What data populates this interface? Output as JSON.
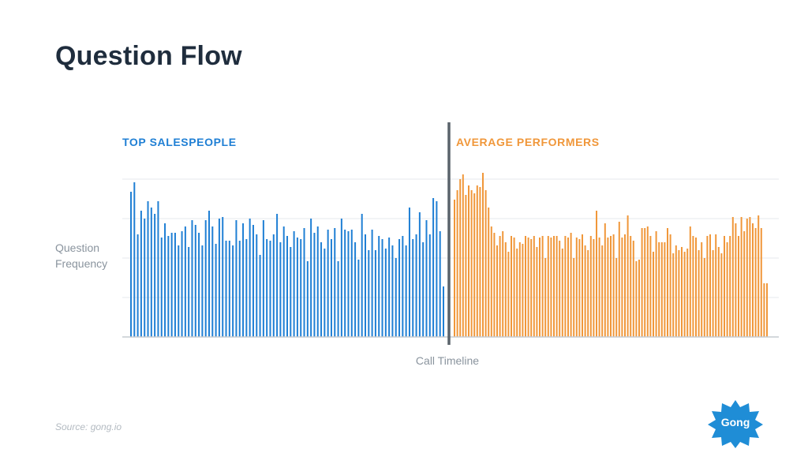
{
  "title": "Question Flow",
  "source": "Source: gong.io",
  "logo": {
    "text": "Gong",
    "color": "#1f8dd6"
  },
  "colors": {
    "top": "#1f7fd4",
    "average": "#f0973a",
    "divider": "#5a636b",
    "grid": "#e6e9ec",
    "axis": "#c5cbd1"
  },
  "chart_data": {
    "type": "bar",
    "title": "Question Flow",
    "xlabel": "Call Timeline",
    "ylabel_lines": [
      "Question",
      "Frequency"
    ],
    "ylim": [
      0,
      100
    ],
    "grid": true,
    "series": [
      {
        "name": "TOP SALESPEOPLE",
        "color": "#1f7fd4",
        "values": [
          92,
          98,
          65,
          80,
          75,
          86,
          82,
          78,
          86,
          63,
          72,
          64,
          66,
          66,
          58,
          67,
          70,
          57,
          74,
          71,
          66,
          58,
          74,
          80,
          70,
          59,
          75,
          76,
          61,
          61,
          58,
          74,
          61,
          72,
          62,
          75,
          71,
          65,
          52,
          74,
          62,
          61,
          65,
          78,
          60,
          70,
          64,
          57,
          67,
          63,
          62,
          69,
          48,
          75,
          66,
          70,
          60,
          56,
          68,
          62,
          69,
          48,
          75,
          68,
          67,
          68,
          60,
          49,
          78,
          65,
          55,
          68,
          55,
          64,
          62,
          56,
          63,
          58,
          50,
          62,
          64,
          58,
          82,
          62,
          65,
          79,
          60,
          74,
          65,
          88,
          86,
          67,
          32
        ]
      },
      {
        "name": "AVERAGE PERFORMERS",
        "color": "#f0973a",
        "values": [
          87,
          93,
          100,
          103,
          90,
          96,
          93,
          91,
          96,
          95,
          104,
          93,
          82,
          70,
          66,
          58,
          64,
          67,
          60,
          54,
          64,
          63,
          56,
          60,
          59,
          64,
          63,
          62,
          64,
          57,
          63,
          64,
          50,
          64,
          63,
          64,
          64,
          61,
          56,
          64,
          63,
          66,
          50,
          63,
          62,
          65,
          58,
          55,
          64,
          62,
          80,
          63,
          58,
          72,
          63,
          64,
          65,
          50,
          73,
          63,
          65,
          77,
          64,
          61,
          48,
          49,
          69,
          69,
          70,
          64,
          54,
          67,
          60,
          60,
          60,
          69,
          65,
          53,
          58,
          55,
          57,
          54,
          56,
          70,
          64,
          63,
          55,
          60,
          50,
          64,
          65,
          55,
          65,
          57,
          53,
          64,
          60,
          64,
          76,
          72,
          64,
          76,
          67,
          75,
          76,
          72,
          69,
          77,
          69,
          34,
          34
        ]
      }
    ]
  }
}
